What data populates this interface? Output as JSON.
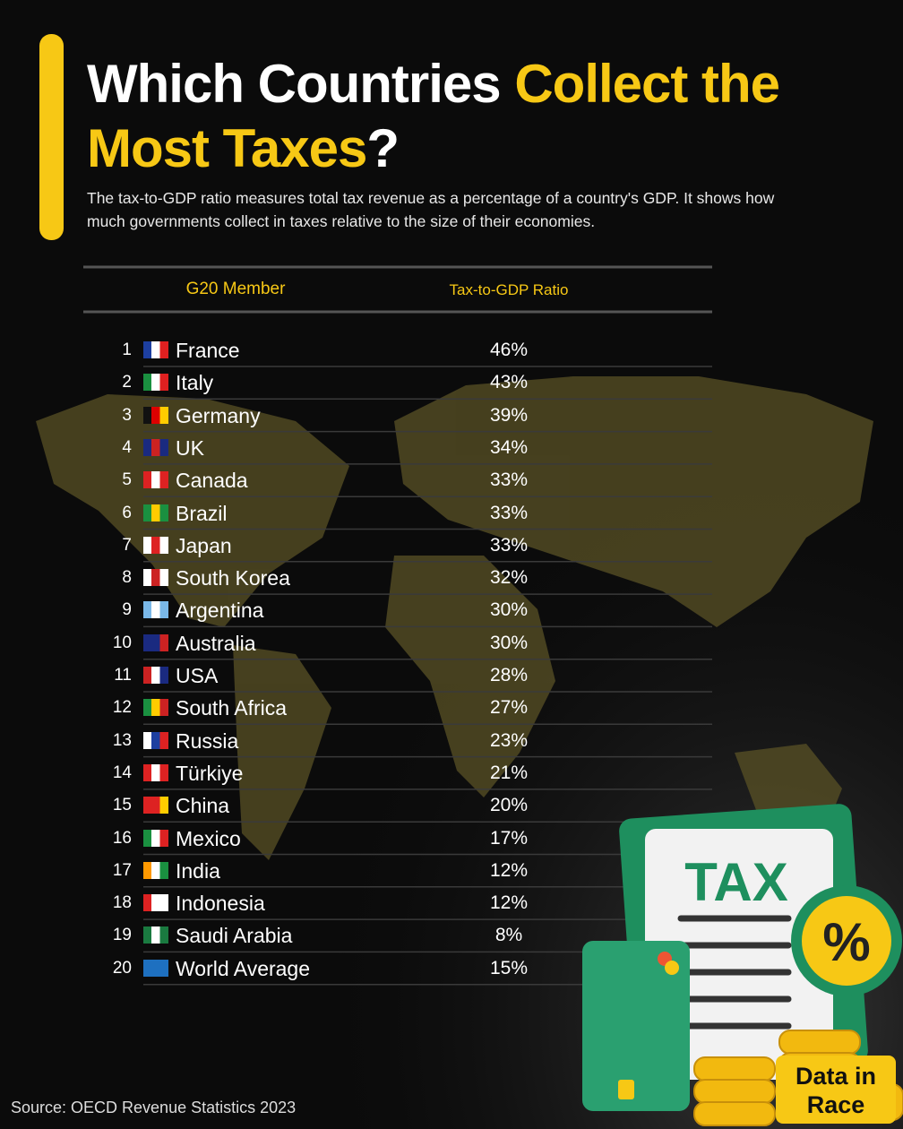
{
  "header": {
    "title_parts": [
      "Which Countries ",
      "Collect the Most Taxes",
      "?"
    ],
    "subtitle": "The tax-to-GDP ratio measures total tax revenue as a percentage of a country's GDP. It shows how much governments collect in taxes relative to the size of their economies."
  },
  "table": {
    "columns": [
      "G20 Member",
      "Tax-to-GDP Ratio"
    ],
    "rows": [
      [
        1,
        "France",
        "46%"
      ],
      [
        2,
        "Italy",
        "43%"
      ],
      [
        3,
        "Germany",
        "39%"
      ],
      [
        4,
        "UK",
        "34%"
      ],
      [
        5,
        "Canada",
        "33%"
      ],
      [
        6,
        "Brazil",
        "33%"
      ],
      [
        7,
        "Japan",
        "33%"
      ],
      [
        8,
        "South Korea",
        "32%"
      ],
      [
        9,
        "Argentina",
        "30%"
      ],
      [
        10,
        "Australia",
        "30%"
      ],
      [
        11,
        "USA",
        "28%"
      ],
      [
        12,
        "South Africa",
        "27%"
      ],
      [
        13,
        "Russia",
        "23%"
      ],
      [
        14,
        "Türkiye",
        "21%"
      ],
      [
        15,
        "China",
        "20%"
      ],
      [
        16,
        "Mexico",
        "17%"
      ],
      [
        17,
        "India",
        "12%"
      ],
      [
        18,
        "Indonesia",
        "12%"
      ],
      [
        19,
        "Saudi Arabia",
        "8%"
      ],
      [
        20,
        "World Average",
        "15%"
      ]
    ]
  },
  "illustration": {
    "document_label": "TAX",
    "badge": "%"
  },
  "logo": [
    "Data in",
    "Race"
  ],
  "footer": {
    "source": "Source: OECD Revenue Statistics 2023"
  }
}
